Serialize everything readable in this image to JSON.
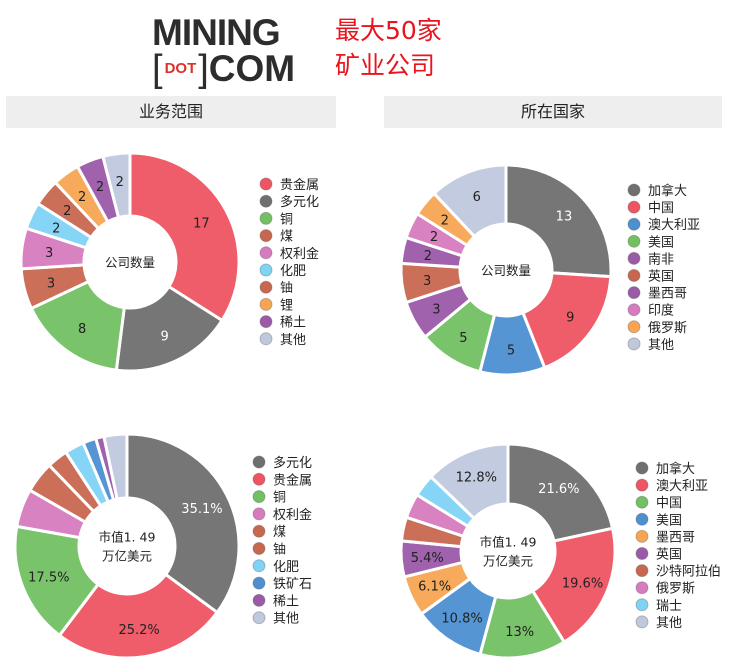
{
  "logo": {
    "line1": "MINING",
    "dot": "DOT",
    "line2": "COM",
    "bracket_open": "[",
    "bracket_close": "]"
  },
  "headline": {
    "line1": "最大50家",
    "line2": "矿业公司",
    "color": "#e8141e"
  },
  "sections": {
    "left": "业务范围",
    "right": "所在国家"
  },
  "chart_data": [
    {
      "type": "pie",
      "donut": true,
      "center_label": [
        "公司数量"
      ],
      "value_format": "count",
      "categories": [
        "贵金属",
        "多元化",
        "铜",
        "煤",
        "权利金",
        "化肥",
        "铀",
        "锂",
        "稀土",
        "其他"
      ],
      "values": [
        17,
        9,
        8,
        3,
        3,
        2,
        2,
        2,
        2,
        2
      ],
      "colors": [
        "#ee5462",
        "#6f6f6f",
        "#72c062",
        "#c8674f",
        "#d67bbf",
        "#7fd3f5",
        "#c8674f",
        "#f7a552",
        "#9b5aa8",
        "#c0c8de"
      ],
      "labels_shown": [
        true,
        true,
        true,
        true,
        true,
        true,
        true,
        true,
        true,
        true
      ],
      "legend": "right"
    },
    {
      "type": "pie",
      "donut": true,
      "center_label": [
        "公司数量"
      ],
      "value_format": "count",
      "categories": [
        "加拿大",
        "中国",
        "澳大利亚",
        "美国",
        "南非",
        "英国",
        "墨西哥",
        "印度",
        "俄罗斯",
        "其他"
      ],
      "values": [
        13,
        9,
        5,
        5,
        3,
        3,
        2,
        2,
        2,
        6
      ],
      "colors": [
        "#6f6f6f",
        "#ee5462",
        "#4d8fd1",
        "#72c062",
        "#9b5aa8",
        "#c8674f",
        "#9b5aa8",
        "#d67bbf",
        "#f7a552",
        "#c0c8de"
      ],
      "labels_shown": [
        true,
        true,
        true,
        true,
        true,
        true,
        true,
        true,
        true,
        true
      ],
      "legend": "right"
    },
    {
      "type": "pie",
      "donut": true,
      "center_label": [
        "市值1. 49",
        "万亿美元"
      ],
      "value_format": "percent",
      "categories": [
        "多元化",
        "贵金属",
        "铜",
        "权利金",
        "煤",
        "铀",
        "化肥",
        "铁矿石",
        "稀土",
        "其他"
      ],
      "values": [
        35.1,
        25.2,
        17.5,
        5.5,
        4.5,
        3.0,
        2.8,
        1.9,
        1.2,
        3.3
      ],
      "colors": [
        "#6f6f6f",
        "#ee5462",
        "#72c062",
        "#d67bbf",
        "#c8674f",
        "#c8674f",
        "#7fd3f5",
        "#4d8fd1",
        "#9b5aa8",
        "#c0c8de"
      ],
      "labels_shown": [
        true,
        true,
        true,
        false,
        false,
        false,
        false,
        false,
        false,
        false
      ],
      "legend": "right"
    },
    {
      "type": "pie",
      "donut": true,
      "center_label": [
        "市值1. 49",
        "万亿美元"
      ],
      "value_format": "percent",
      "categories": [
        "加拿大",
        "澳大利亚",
        "中国",
        "美国",
        "墨西哥",
        "英国",
        "沙特阿拉伯",
        "俄罗斯",
        "瑞士",
        "其他"
      ],
      "values": [
        21.6,
        19.6,
        13,
        10.8,
        6.1,
        5.4,
        3.6,
        3.7,
        3.4,
        12.8
      ],
      "colors": [
        "#6f6f6f",
        "#ee5462",
        "#72c062",
        "#4d8fd1",
        "#f7a552",
        "#9b5aa8",
        "#c8674f",
        "#d67bbf",
        "#7fd3f5",
        "#c0c8de"
      ],
      "labels_shown": [
        true,
        true,
        true,
        true,
        true,
        true,
        false,
        false,
        false,
        true
      ],
      "legend": "right"
    }
  ]
}
